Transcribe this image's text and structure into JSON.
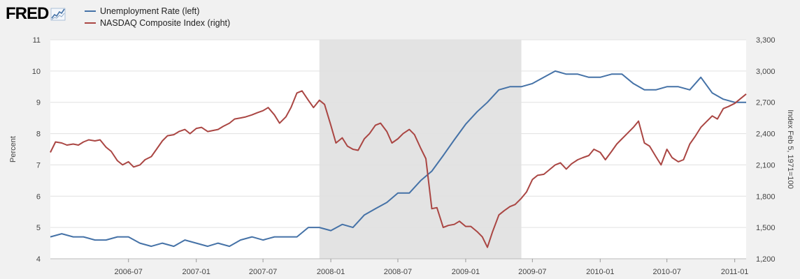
{
  "header": {
    "logo_text": "FRED"
  },
  "chart_data": {
    "type": "line",
    "ylabel_left": "Percent",
    "ylabel_right": "Index Feb 5, 1971=100",
    "ylim_left": [
      4,
      11
    ],
    "ylim_right": [
      1200,
      3300
    ],
    "xlim": [
      "2005-12-01",
      "2011-02-01"
    ],
    "grid": true,
    "legend_position": "top-left",
    "x_ticks": [
      "2006-07",
      "2007-01",
      "2007-07",
      "2008-01",
      "2008-07",
      "2009-01",
      "2009-07",
      "2010-01",
      "2010-07",
      "2011-01"
    ],
    "y_ticks_left": [
      "4",
      "5",
      "6",
      "7",
      "8",
      "9",
      "10",
      "11"
    ],
    "y_ticks_right": [
      "1,200",
      "1,500",
      "1,800",
      "2,100",
      "2,400",
      "2,700",
      "3,000",
      "3,300"
    ],
    "recession": {
      "start": "2007-12-01",
      "end": "2009-06-01",
      "color": "#e3e3e3"
    },
    "series": [
      {
        "name": "Unemployment Rate (left)",
        "axis": "left",
        "color": "#4572a7",
        "x": [
          "2005-12",
          "2006-01",
          "2006-02",
          "2006-03",
          "2006-04",
          "2006-05",
          "2006-06",
          "2006-07",
          "2006-08",
          "2006-09",
          "2006-10",
          "2006-11",
          "2006-12",
          "2007-01",
          "2007-02",
          "2007-03",
          "2007-04",
          "2007-05",
          "2007-06",
          "2007-07",
          "2007-08",
          "2007-09",
          "2007-10",
          "2007-11",
          "2007-12",
          "2008-01",
          "2008-02",
          "2008-03",
          "2008-04",
          "2008-05",
          "2008-06",
          "2008-07",
          "2008-08",
          "2008-09",
          "2008-10",
          "2008-11",
          "2008-12",
          "2009-01",
          "2009-02",
          "2009-03",
          "2009-04",
          "2009-05",
          "2009-06",
          "2009-07",
          "2009-08",
          "2009-09",
          "2009-10",
          "2009-11",
          "2009-12",
          "2010-01",
          "2010-02",
          "2010-03",
          "2010-04",
          "2010-05",
          "2010-06",
          "2010-07",
          "2010-08",
          "2010-09",
          "2010-10",
          "2010-11",
          "2010-12",
          "2011-01",
          "2011-02"
        ],
        "values": [
          4.7,
          4.8,
          4.7,
          4.7,
          4.6,
          4.6,
          4.7,
          4.7,
          4.5,
          4.4,
          4.5,
          4.4,
          4.6,
          4.5,
          4.4,
          4.5,
          4.4,
          4.6,
          4.7,
          4.6,
          4.7,
          4.7,
          4.7,
          5.0,
          5.0,
          4.9,
          5.1,
          5.0,
          5.4,
          5.6,
          5.8,
          6.1,
          6.1,
          6.5,
          6.8,
          7.3,
          7.8,
          8.3,
          8.7,
          9.0,
          9.4,
          9.5,
          9.5,
          9.6,
          9.8,
          10.0,
          9.9,
          9.9,
          9.8,
          9.8,
          9.9,
          9.9,
          9.6,
          9.4,
          9.4,
          9.5,
          9.5,
          9.4,
          9.8,
          9.3,
          9.1,
          9.0,
          9.0
        ]
      },
      {
        "name": "NASDAQ Composite Index (right)",
        "axis": "right",
        "color": "#aa4643",
        "x": [
          "2005-12-01",
          "2005-12-15",
          "2006-01-01",
          "2006-01-15",
          "2006-02-01",
          "2006-02-15",
          "2006-03-01",
          "2006-03-15",
          "2006-04-01",
          "2006-04-15",
          "2006-05-01",
          "2006-05-15",
          "2006-06-01",
          "2006-06-15",
          "2006-07-01",
          "2006-07-15",
          "2006-08-01",
          "2006-08-15",
          "2006-09-01",
          "2006-09-15",
          "2006-10-01",
          "2006-10-15",
          "2006-11-01",
          "2006-11-15",
          "2006-12-01",
          "2006-12-15",
          "2007-01-01",
          "2007-01-15",
          "2007-02-01",
          "2007-02-15",
          "2007-03-01",
          "2007-03-15",
          "2007-04-01",
          "2007-04-15",
          "2007-05-01",
          "2007-05-15",
          "2007-06-01",
          "2007-06-15",
          "2007-07-01",
          "2007-07-15",
          "2007-08-01",
          "2007-08-15",
          "2007-09-01",
          "2007-09-15",
          "2007-10-01",
          "2007-10-15",
          "2007-11-01",
          "2007-11-15",
          "2007-12-01",
          "2007-12-15",
          "2008-01-01",
          "2008-01-15",
          "2008-02-01",
          "2008-02-15",
          "2008-03-01",
          "2008-03-15",
          "2008-04-01",
          "2008-04-15",
          "2008-05-01",
          "2008-05-15",
          "2008-06-01",
          "2008-06-15",
          "2008-07-01",
          "2008-07-15",
          "2008-08-01",
          "2008-08-15",
          "2008-09-01",
          "2008-09-15",
          "2008-10-01",
          "2008-10-15",
          "2008-11-01",
          "2008-11-15",
          "2008-12-01",
          "2008-12-15",
          "2009-01-01",
          "2009-01-15",
          "2009-02-01",
          "2009-02-15",
          "2009-03-01",
          "2009-03-15",
          "2009-04-01",
          "2009-04-15",
          "2009-05-01",
          "2009-05-15",
          "2009-06-01",
          "2009-06-15",
          "2009-07-01",
          "2009-07-15",
          "2009-08-01",
          "2009-08-15",
          "2009-09-01",
          "2009-09-15",
          "2009-10-01",
          "2009-10-15",
          "2009-11-01",
          "2009-11-15",
          "2009-12-01",
          "2009-12-15",
          "2010-01-01",
          "2010-01-15",
          "2010-02-01",
          "2010-02-15",
          "2010-03-01",
          "2010-03-15",
          "2010-04-01",
          "2010-04-15",
          "2010-05-01",
          "2010-05-15",
          "2010-06-01",
          "2010-06-15",
          "2010-07-01",
          "2010-07-15",
          "2010-08-01",
          "2010-08-15",
          "2010-09-01",
          "2010-09-15",
          "2010-10-01",
          "2010-10-15",
          "2010-11-01",
          "2010-11-15",
          "2010-12-01",
          "2010-12-15",
          "2011-01-01",
          "2011-01-15",
          "2011-02-01"
        ],
        "values": [
          2220,
          2320,
          2310,
          2290,
          2300,
          2290,
          2320,
          2340,
          2330,
          2340,
          2270,
          2230,
          2140,
          2100,
          2130,
          2080,
          2100,
          2150,
          2180,
          2250,
          2330,
          2380,
          2390,
          2420,
          2440,
          2400,
          2450,
          2460,
          2420,
          2430,
          2440,
          2470,
          2500,
          2540,
          2550,
          2560,
          2580,
          2600,
          2620,
          2650,
          2580,
          2500,
          2560,
          2650,
          2790,
          2810,
          2720,
          2650,
          2720,
          2680,
          2480,
          2310,
          2360,
          2280,
          2250,
          2240,
          2350,
          2400,
          2480,
          2500,
          2420,
          2310,
          2350,
          2400,
          2440,
          2390,
          2260,
          2160,
          1680,
          1690,
          1500,
          1520,
          1530,
          1560,
          1510,
          1510,
          1460,
          1410,
          1310,
          1460,
          1620,
          1660,
          1700,
          1720,
          1780,
          1840,
          1960,
          2000,
          2010,
          2050,
          2100,
          2120,
          2060,
          2110,
          2150,
          2170,
          2190,
          2250,
          2220,
          2150,
          2230,
          2300,
          2350,
          2400,
          2460,
          2520,
          2310,
          2280,
          2180,
          2100,
          2250,
          2170,
          2130,
          2150,
          2300,
          2370,
          2460,
          2510,
          2570,
          2540,
          2640,
          2660,
          2690,
          2730,
          2780
        ]
      }
    ]
  }
}
